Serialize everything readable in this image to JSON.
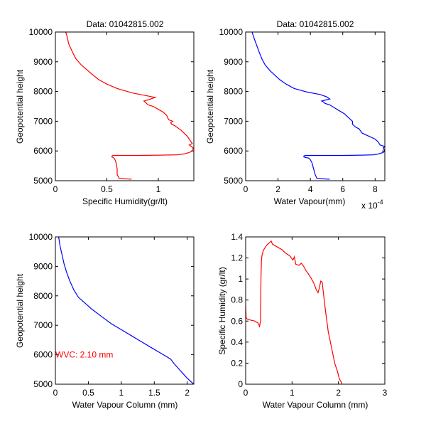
{
  "chart_data": [
    {
      "id": "top-left",
      "type": "line",
      "title": "Data: 01042815.002",
      "xlabel": "Specific Humidity(gr/lt)",
      "ylabel": "Geopotential height",
      "xlim": [
        0,
        1.345
      ],
      "ylim": [
        5000,
        10000
      ],
      "xticks": [
        0,
        0.5,
        1
      ],
      "xtick_labels": [
        "0",
        "0.5",
        "1"
      ],
      "yticks": [
        5000,
        6000,
        7000,
        8000,
        9000,
        10000
      ],
      "ytick_labels": [
        "5000",
        "6000",
        "7000",
        "8000",
        "9000",
        "10000"
      ],
      "grid": false,
      "series": [
        {
          "name": "specific-humidity-profile",
          "color": "#ff0000",
          "x": [
            0.74,
            0.7,
            0.62,
            0.6,
            0.6,
            0.59,
            0.58,
            0.57,
            0.56,
            0.55,
            0.55,
            0.56,
            0.6,
            0.8,
            1.0,
            1.18,
            1.25,
            1.3,
            1.33,
            1.34,
            1.3,
            1.33,
            1.3,
            1.28,
            1.25,
            1.22,
            1.2,
            1.16,
            1.13,
            1.12,
            1.14,
            1.1,
            1.08,
            1.05,
            1.0,
            0.95,
            0.9,
            0.88,
            0.86,
            0.9,
            0.97,
            0.9,
            0.75,
            0.6,
            0.5,
            0.42,
            0.35,
            0.3,
            0.25,
            0.2,
            0.17,
            0.15,
            0.13,
            0.12,
            0.11,
            0.1
          ],
          "y": [
            5050,
            5060,
            5080,
            5200,
            5400,
            5600,
            5700,
            5760,
            5780,
            5800,
            5830,
            5850,
            5850,
            5850,
            5860,
            5870,
            5900,
            5950,
            6000,
            6100,
            6200,
            6250,
            6400,
            6500,
            6600,
            6700,
            6750,
            6850,
            6900,
            6950,
            7000,
            7050,
            7200,
            7300,
            7400,
            7500,
            7550,
            7620,
            7680,
            7720,
            7800,
            7850,
            7950,
            8100,
            8250,
            8400,
            8600,
            8750,
            8900,
            9100,
            9300,
            9450,
            9600,
            9750,
            9900,
            10000
          ]
        }
      ]
    },
    {
      "id": "top-right",
      "type": "line",
      "title": "Data: 01042815.002",
      "xlabel": "Water Vapour(mm)",
      "x_multiplier": "x 10",
      "x_multiplier_exp": "-4",
      "ylabel": "Geopotential height",
      "xlim": [
        0,
        8.6
      ],
      "ylim": [
        5000,
        10000
      ],
      "xticks": [
        0,
        2,
        4,
        6,
        8
      ],
      "xtick_labels": [
        "0",
        "2",
        "4",
        "6",
        "8"
      ],
      "yticks": [
        5000,
        6000,
        7000,
        8000,
        9000,
        10000
      ],
      "ytick_labels": [
        "5000",
        "6000",
        "7000",
        "8000",
        "9000",
        "10000"
      ],
      "grid": false,
      "series": [
        {
          "name": "water-vapour-profile",
          "color": "#0000ff",
          "x": [
            5.2,
            4.9,
            4.4,
            4.3,
            4.2,
            4.1,
            4.0,
            3.9,
            3.7,
            3.6,
            3.6,
            3.7,
            4.5,
            6.0,
            7.1,
            7.9,
            8.2,
            8.5,
            8.6,
            8.5,
            8.6,
            8.3,
            8.2,
            8.0,
            7.6,
            7.2,
            7.0,
            6.8,
            6.6,
            6.6,
            6.5,
            6.3,
            6.1,
            5.8,
            5.5,
            5.2,
            4.9,
            4.8,
            4.7,
            5.2,
            5.0,
            4.6,
            3.8,
            3.0,
            2.5,
            2.1,
            1.8,
            1.5,
            1.2,
            1.0,
            0.85,
            0.75,
            0.65,
            0.55,
            0.45,
            0.4
          ],
          "y": [
            5050,
            5060,
            5080,
            5200,
            5400,
            5600,
            5700,
            5760,
            5780,
            5800,
            5830,
            5850,
            5850,
            5850,
            5860,
            5870,
            5900,
            5950,
            6000,
            6100,
            6150,
            6200,
            6300,
            6400,
            6500,
            6600,
            6750,
            6800,
            6900,
            7000,
            7050,
            7150,
            7250,
            7350,
            7450,
            7550,
            7600,
            7650,
            7680,
            7750,
            7820,
            7900,
            7980,
            8100,
            8250,
            8400,
            8550,
            8700,
            8900,
            9100,
            9300,
            9450,
            9600,
            9750,
            9900,
            10000
          ]
        }
      ]
    },
    {
      "id": "bottom-left",
      "type": "line",
      "title": "",
      "xlabel": "Water Vapour Column (mm)",
      "ylabel": "Geopotential height",
      "xlim": [
        0,
        2.1
      ],
      "ylim": [
        5000,
        10000
      ],
      "xticks": [
        0,
        0.5,
        1,
        1.5,
        2
      ],
      "xtick_labels": [
        "0",
        "0.5",
        "1",
        "1.5",
        "2"
      ],
      "yticks": [
        5000,
        6000,
        7000,
        8000,
        9000,
        10000
      ],
      "ytick_labels": [
        "5000",
        "6000",
        "7000",
        "8000",
        "9000",
        "10000"
      ],
      "grid": false,
      "annotation": {
        "text": "WVC: 2.10 mm",
        "x": 0.0,
        "y": 6000,
        "color": "#ff0000"
      },
      "series": [
        {
          "name": "cumulative-water-vapour-column",
          "color": "#0000ff",
          "x": [
            2.1,
            2.0,
            1.9,
            1.8,
            1.75,
            1.6,
            1.45,
            1.3,
            1.15,
            1.0,
            0.85,
            0.7,
            0.55,
            0.45,
            0.35,
            0.28,
            0.22,
            0.17,
            0.13,
            0.1,
            0.07,
            0.05
          ],
          "y": [
            5000,
            5200,
            5450,
            5700,
            5850,
            6050,
            6250,
            6450,
            6650,
            6850,
            7050,
            7300,
            7550,
            7750,
            7950,
            8200,
            8500,
            8800,
            9100,
            9400,
            9700,
            10000
          ]
        }
      ]
    },
    {
      "id": "bottom-right",
      "type": "line",
      "title": "",
      "xlabel": "Water Vapour Column (mm)",
      "ylabel": "Specific Humidity (gr/lt)",
      "xlim": [
        0,
        3
      ],
      "ylim": [
        0,
        1.4
      ],
      "xticks": [
        0,
        1,
        2,
        3
      ],
      "xtick_labels": [
        "0",
        "1",
        "2",
        "3"
      ],
      "yticks": [
        0,
        0.2,
        0.4,
        0.6,
        0.8,
        1.0,
        1.2,
        1.4
      ],
      "ytick_labels": [
        "0",
        "0.2",
        "0.4",
        "0.6",
        "0.8",
        "1",
        "1.2",
        "1.4"
      ],
      "grid": false,
      "series": [
        {
          "name": "humidity-vs-column",
          "color": "#ff0000",
          "x": [
            0.0,
            0.01,
            0.03,
            0.1,
            0.2,
            0.27,
            0.3,
            0.32,
            0.33,
            0.34,
            0.35,
            0.38,
            0.42,
            0.47,
            0.5,
            0.55,
            0.58,
            0.62,
            0.7,
            0.78,
            0.85,
            0.95,
            1.02,
            1.05,
            1.08,
            1.15,
            1.2,
            1.25,
            1.3,
            1.35,
            1.42,
            1.48,
            1.52,
            1.56,
            1.58,
            1.62,
            1.65,
            1.68,
            1.72,
            1.78,
            1.85,
            1.92,
            1.98,
            2.02,
            2.06,
            2.08
          ],
          "y": [
            0.75,
            0.63,
            0.62,
            0.61,
            0.6,
            0.58,
            0.55,
            0.6,
            1.02,
            1.17,
            1.22,
            1.27,
            1.3,
            1.33,
            1.34,
            1.36,
            1.33,
            1.32,
            1.3,
            1.28,
            1.25,
            1.22,
            1.18,
            1.21,
            1.14,
            1.13,
            1.15,
            1.12,
            1.08,
            1.05,
            1.0,
            0.95,
            0.9,
            0.87,
            0.9,
            0.98,
            0.97,
            0.85,
            0.7,
            0.5,
            0.35,
            0.2,
            0.12,
            0.05,
            0.02,
            0.0
          ]
        }
      ]
    }
  ]
}
